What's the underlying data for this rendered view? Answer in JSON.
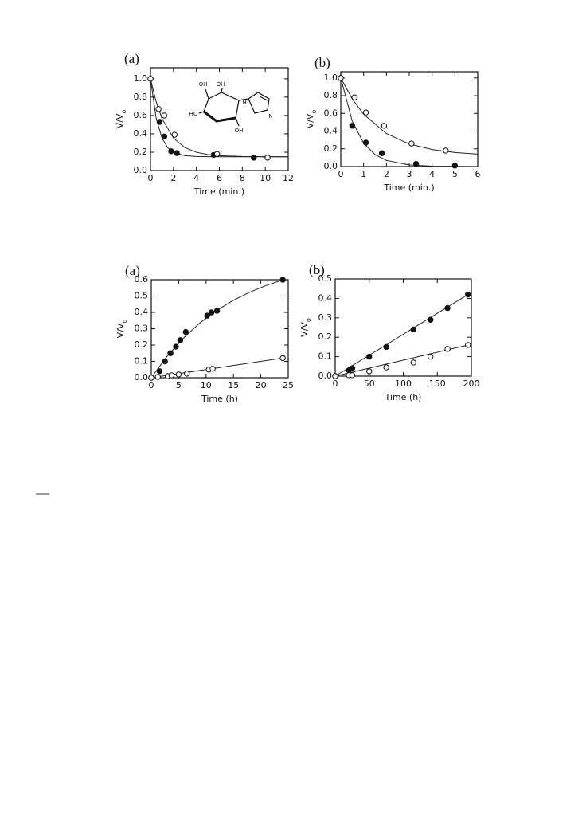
{
  "chart_data": [
    {
      "type": "scatter",
      "panel": "(a)",
      "x_label": "Time (min.)",
      "y_label": "V/V",
      "y_label_sub": "o",
      "annotations": [
        "OH",
        "OH",
        "HO",
        "OH",
        "N",
        "N"
      ],
      "xlim": [
        0,
        12
      ],
      "xticks": [
        0,
        2,
        4,
        6,
        8,
        10,
        12
      ],
      "ylim": [
        0,
        1.12
      ],
      "yticks": [
        {
          "value": 0,
          "label": "0.0"
        },
        0.2,
        0.4,
        0.6,
        0.8,
        {
          "value": 1,
          "label": "1.0"
        }
      ],
      "series": [
        {
          "marker": "filled",
          "x": [
            0,
            0.8,
            1.2,
            1.8,
            2.3,
            5.5,
            9
          ],
          "values": [
            1.0,
            0.53,
            0.37,
            0.21,
            0.19,
            0.17,
            0.14
          ]
        },
        {
          "marker": "open",
          "x": [
            0,
            0.7,
            1.2,
            2.1,
            5.8,
            10.2
          ],
          "values": [
            1.0,
            0.67,
            0.6,
            0.39,
            0.18,
            0.14
          ]
        },
        {
          "style": "line",
          "x": [
            0,
            0.5,
            1,
            1.5,
            2,
            3,
            4,
            6,
            12
          ],
          "values": [
            1.0,
            0.566,
            0.354,
            0.25,
            0.199,
            0.162,
            0.153,
            0.15,
            0.15
          ]
        },
        {
          "style": "line",
          "x": [
            0,
            0.5,
            1,
            2,
            3,
            4,
            5,
            6,
            8,
            12
          ],
          "values": [
            1.0,
            0.745,
            0.567,
            0.354,
            0.25,
            0.199,
            0.174,
            0.162,
            0.153,
            0.15
          ]
        }
      ]
    },
    {
      "type": "scatter",
      "panel": "(b)",
      "x_label": "Time (min.)",
      "y_label": "V/V",
      "y_label_sub": "o",
      "xlim": [
        0,
        6
      ],
      "xticks": [
        0,
        1,
        2,
        3,
        4,
        5,
        6
      ],
      "ylim": [
        0,
        1.07
      ],
      "yticks": [
        {
          "value": 0,
          "label": "0.0"
        },
        0.2,
        0.4,
        0.6,
        0.8,
        {
          "value": 1,
          "label": "1.0"
        }
      ],
      "series": [
        {
          "marker": "filled",
          "x": [
            0,
            0.5,
            1.1,
            1.8,
            3.3,
            5
          ],
          "values": [
            1.0,
            0.46,
            0.27,
            0.15,
            0.03,
            0.01
          ]
        },
        {
          "marker": "open",
          "x": [
            0,
            0.6,
            1.1,
            1.9,
            3.1,
            4.6
          ],
          "values": [
            1.0,
            0.78,
            0.61,
            0.46,
            0.26,
            0.18
          ]
        },
        {
          "style": "line",
          "x": [
            0,
            0.5,
            1,
            1.5,
            2,
            3,
            4,
            6
          ],
          "values": [
            1.0,
            0.513,
            0.264,
            0.135,
            0.069,
            0.018,
            0.005,
            0
          ]
        },
        {
          "style": "line",
          "x": [
            0,
            0.5,
            1,
            2,
            3,
            4,
            5,
            6
          ],
          "values": [
            1.0,
            0.764,
            0.591,
            0.372,
            0.255,
            0.192,
            0.159,
            0.141
          ]
        }
      ]
    },
    {
      "type": "scatter",
      "panel": "(a)",
      "x_label": "Time (h)",
      "y_label": "V/V",
      "y_label_sub": "o",
      "xlim": [
        0,
        25
      ],
      "xticks": [
        0,
        5,
        10,
        15,
        20,
        25
      ],
      "ylim": [
        0,
        0.6
      ],
      "yticks": [
        {
          "value": 0,
          "label": "0.0"
        },
        0.1,
        0.2,
        0.3,
        0.4,
        0.5,
        0.6
      ],
      "series": [
        {
          "marker": "filled",
          "x": [
            0,
            1.5,
            2.5,
            3.5,
            4.5,
            5.3,
            6.3,
            10.2,
            11,
            12,
            24
          ],
          "values": [
            0,
            0.04,
            0.1,
            0.15,
            0.19,
            0.23,
            0.28,
            0.38,
            0.4,
            0.41,
            0.6
          ]
        },
        {
          "marker": "open",
          "x": [
            0,
            1.2,
            3,
            3.7,
            5,
            6.5,
            10.5,
            11.2,
            24
          ],
          "values": [
            0,
            0.005,
            0.01,
            0.015,
            0.02,
            0.025,
            0.05,
            0.055,
            0.12
          ]
        },
        {
          "style": "line",
          "x": [
            0,
            3,
            6,
            9,
            12,
            15,
            18,
            21,
            24
          ],
          "values": [
            0,
            0.136,
            0.247,
            0.339,
            0.413,
            0.474,
            0.524,
            0.565,
            0.599
          ]
        },
        {
          "style": "line",
          "x": [
            0,
            24
          ],
          "values": [
            0,
            0.12
          ]
        }
      ]
    },
    {
      "type": "scatter",
      "panel": "(b)",
      "x_label": "Time (h)",
      "y_label": "V/V",
      "y_label_sub": "o",
      "xlim": [
        0,
        200
      ],
      "xticks": [
        0,
        50,
        100,
        150,
        200
      ],
      "ylim": [
        0,
        0.5
      ],
      "yticks": [
        {
          "value": 0,
          "label": "0.0"
        },
        0.1,
        0.2,
        0.3,
        0.4,
        0.5
      ],
      "series": [
        {
          "marker": "filled",
          "x": [
            0,
            20,
            25,
            50,
            75,
            115,
            140,
            165,
            195
          ],
          "values": [
            0,
            0.03,
            0.04,
            0.1,
            0.15,
            0.24,
            0.29,
            0.35,
            0.42
          ]
        },
        {
          "marker": "open",
          "x": [
            0,
            20,
            25,
            50,
            75,
            115,
            140,
            165,
            195
          ],
          "values": [
            0,
            0.005,
            0.005,
            0.025,
            0.045,
            0.07,
            0.1,
            0.14,
            0.16
          ]
        },
        {
          "style": "line",
          "x": [
            0,
            195
          ],
          "values": [
            0,
            0.42
          ]
        },
        {
          "style": "line",
          "x": [
            0,
            195
          ],
          "values": [
            0,
            0.16
          ]
        }
      ]
    }
  ]
}
